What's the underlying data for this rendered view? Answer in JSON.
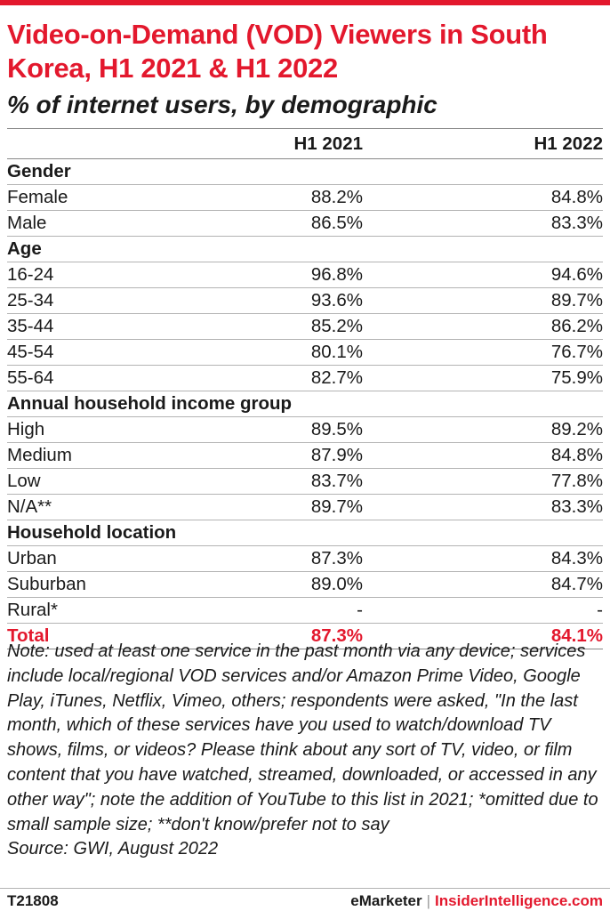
{
  "colors": {
    "accent": "#e3182d",
    "text": "#1a1a1a",
    "rule": "#b3b3b3"
  },
  "title": "Video-on-Demand (VOD) Viewers in South Korea, H1 2021 & H1 2022",
  "subtitle": "% of internet users, by demographic",
  "chart_data": {
    "type": "table",
    "title": "Video-on-Demand (VOD) Viewers in South Korea, H1 2021 & H1 2022",
    "subtitle": "% of internet users, by demographic",
    "columns": [
      "H1 2021",
      "H1 2022"
    ],
    "groups": [
      {
        "name": "Gender",
        "rows": [
          {
            "label": "Female",
            "values": [
              "88.2%",
              "84.8%"
            ]
          },
          {
            "label": "Male",
            "values": [
              "86.5%",
              "83.3%"
            ]
          }
        ]
      },
      {
        "name": "Age",
        "rows": [
          {
            "label": "16-24",
            "values": [
              "96.8%",
              "94.6%"
            ]
          },
          {
            "label": "25-34",
            "values": [
              "93.6%",
              "89.7%"
            ]
          },
          {
            "label": "35-44",
            "values": [
              "85.2%",
              "86.2%"
            ]
          },
          {
            "label": "45-54",
            "values": [
              "80.1%",
              "76.7%"
            ]
          },
          {
            "label": "55-64",
            "values": [
              "82.7%",
              "75.9%"
            ]
          }
        ]
      },
      {
        "name": "Annual household income group",
        "rows": [
          {
            "label": "High",
            "values": [
              "89.5%",
              "89.2%"
            ]
          },
          {
            "label": "Medium",
            "values": [
              "87.9%",
              "84.8%"
            ]
          },
          {
            "label": "Low",
            "values": [
              "83.7%",
              "77.8%"
            ]
          },
          {
            "label": "N/A**",
            "values": [
              "89.7%",
              "83.3%"
            ]
          }
        ]
      },
      {
        "name": "Household location",
        "rows": [
          {
            "label": "Urban",
            "values": [
              "87.3%",
              "84.3%"
            ]
          },
          {
            "label": "Suburban",
            "values": [
              "89.0%",
              "84.7%"
            ]
          },
          {
            "label": "Rural*",
            "values": [
              "-",
              "-"
            ]
          }
        ]
      }
    ],
    "total": {
      "label": "Total",
      "values": [
        "87.3%",
        "84.1%"
      ]
    }
  },
  "note": "Note: used at least one service in the past month via any device; services include local/regional VOD services and/or Amazon Prime Video, Google Play, iTunes, Netflix, Vimeo, others; respondents were asked, \"In the last month, which of these services have you used to watch/download TV shows, films, or videos? Please think about any sort of TV, video, or film content that you have watched, streamed, downloaded, or accessed in any other way\"; note the addition of YouTube to this list in 2021; *omitted due to small sample size; **don't know/prefer not to say",
  "source": "Source: GWI, August 2022",
  "footer": {
    "code": "T21808",
    "brand": "eMarketer",
    "separator": "|",
    "brand2": "InsiderIntelligence.com"
  }
}
